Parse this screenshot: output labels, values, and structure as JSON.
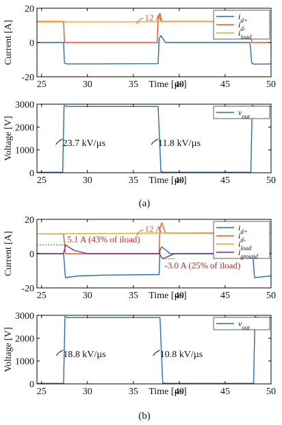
{
  "captions": {
    "a": "(a)",
    "b": "(b)"
  },
  "colors": {
    "id_plus": "#1f6fb4",
    "id_minus": "#e8581a",
    "iload": "#f0a81e",
    "iground": "#7b2a86",
    "vout": "#1f6fb4",
    "annotation_red": "#d22020",
    "axis": "#000000"
  },
  "chart_data": [
    {
      "id": "a-current",
      "type": "line",
      "ylabel": "Current [A]",
      "xlabel": "Time [µs]",
      "xlim": [
        24.5,
        50
      ],
      "ylim": [
        -20,
        20
      ],
      "xticks": [
        "25",
        "30",
        "35",
        "40",
        "45",
        "50"
      ],
      "yticks": [
        "20",
        "0",
        "-20"
      ],
      "legend": {
        "position": "top-right",
        "entries": [
          "id+",
          "id-",
          "iload"
        ]
      },
      "annotations": [
        {
          "text": "12 A"
        }
      ],
      "series": [
        {
          "name": "id+",
          "x": [
            24.5,
            27.4,
            27.5,
            27.8,
            37.7,
            37.8,
            38.0,
            38.5,
            47.7,
            47.9,
            48.1,
            50
          ],
          "values": [
            0,
            0,
            -12,
            -12.5,
            -12.3,
            2,
            4,
            0,
            0,
            -12,
            -12.6,
            -12.5
          ]
        },
        {
          "name": "id-",
          "x": [
            24.5,
            27.4,
            27.5,
            37.6,
            37.7,
            37.9,
            38.1,
            38.3,
            47.7,
            47.9,
            50
          ],
          "values": [
            12.3,
            12.3,
            0,
            0,
            15,
            17,
            12,
            12.3,
            12.3,
            0,
            0
          ]
        },
        {
          "name": "iload",
          "x": [
            24.5,
            50
          ],
          "values": [
            12,
            12.2
          ]
        }
      ]
    },
    {
      "id": "a-voltage",
      "type": "line",
      "ylabel": "Voltage [V]",
      "xlabel": "Time [µs]",
      "xlim": [
        24.5,
        50
      ],
      "ylim": [
        0,
        3000
      ],
      "xticks": [
        "25",
        "30",
        "35",
        "40",
        "45",
        "50"
      ],
      "yticks": [
        "3000",
        "2000",
        "1000",
        "0"
      ],
      "legend": {
        "position": "top-right",
        "entries": [
          "vout"
        ]
      },
      "annotations": [
        {
          "text": "23.7 kV/µs"
        },
        {
          "text": "11.8 kV/µs"
        }
      ],
      "series": [
        {
          "name": "vout",
          "x": [
            24.5,
            27.3,
            27.45,
            27.7,
            37.7,
            38.0,
            38.3,
            47.8,
            47.95,
            48.2,
            50
          ],
          "values": [
            20,
            20,
            2950,
            2900,
            2900,
            50,
            20,
            20,
            2950,
            2900,
            2900
          ]
        }
      ]
    },
    {
      "id": "b-current",
      "type": "line",
      "ylabel": "Current [A]",
      "xlabel": "Time [µs]",
      "xlim": [
        24.5,
        50
      ],
      "ylim": [
        -20,
        20
      ],
      "xticks": [
        "25",
        "30",
        "35",
        "40",
        "45",
        "50"
      ],
      "yticks": [
        "20",
        "0",
        "-20"
      ],
      "legend": {
        "position": "top-right",
        "entries": [
          "id+",
          "id-",
          "iload",
          "iground"
        ]
      },
      "annotations": [
        {
          "text": "12 A"
        },
        {
          "text": "5.1 A (43% of iload)"
        },
        {
          "text": "-3.0 A (25% of iload)"
        }
      ],
      "series": [
        {
          "name": "id+",
          "x": [
            24.5,
            27.4,
            27.6,
            29.0,
            32.0,
            37.8,
            37.9,
            38.1,
            39.0,
            48.0,
            48.2,
            50
          ],
          "values": [
            0,
            0,
            -14,
            -13,
            -12.5,
            -12.2,
            2,
            4,
            0,
            0,
            -14,
            -13
          ]
        },
        {
          "name": "id-",
          "x": [
            24.5,
            27.4,
            27.6,
            37.8,
            37.9,
            38.1,
            38.5,
            48.0,
            48.2,
            50
          ],
          "values": [
            11.5,
            11.5,
            0,
            0,
            15,
            18,
            12,
            12,
            0,
            0
          ]
        },
        {
          "name": "iload",
          "x": [
            24.5,
            50
          ],
          "values": [
            11.5,
            12.5
          ]
        },
        {
          "name": "iground",
          "x": [
            24.5,
            27.4,
            27.6,
            28.5,
            30,
            37.8,
            38.2,
            39.5,
            48.0,
            48.3,
            50
          ],
          "values": [
            0,
            0,
            5.1,
            2,
            0,
            0,
            -3.0,
            0,
            0,
            3,
            0
          ]
        }
      ]
    },
    {
      "id": "b-voltage",
      "type": "line",
      "ylabel": "Voltage [V]",
      "xlabel": "Time [µs]",
      "xlim": [
        24.5,
        50
      ],
      "ylim": [
        0,
        3000
      ],
      "xticks": [
        "25",
        "30",
        "35",
        "40",
        "45",
        "50"
      ],
      "yticks": [
        "3000",
        "2000",
        "1000",
        "0"
      ],
      "legend": {
        "position": "top-right",
        "entries": [
          "vout"
        ]
      },
      "annotations": [
        {
          "text": "18.8 kV/µs"
        },
        {
          "text": "10.8 kV/µs"
        }
      ],
      "series": [
        {
          "name": "vout",
          "x": [
            24.5,
            27.4,
            27.55,
            27.8,
            37.9,
            38.2,
            38.5,
            48.1,
            48.25,
            48.5,
            50
          ],
          "values": [
            20,
            20,
            2950,
            2900,
            2900,
            50,
            20,
            20,
            2950,
            2900,
            2900
          ]
        }
      ]
    }
  ]
}
